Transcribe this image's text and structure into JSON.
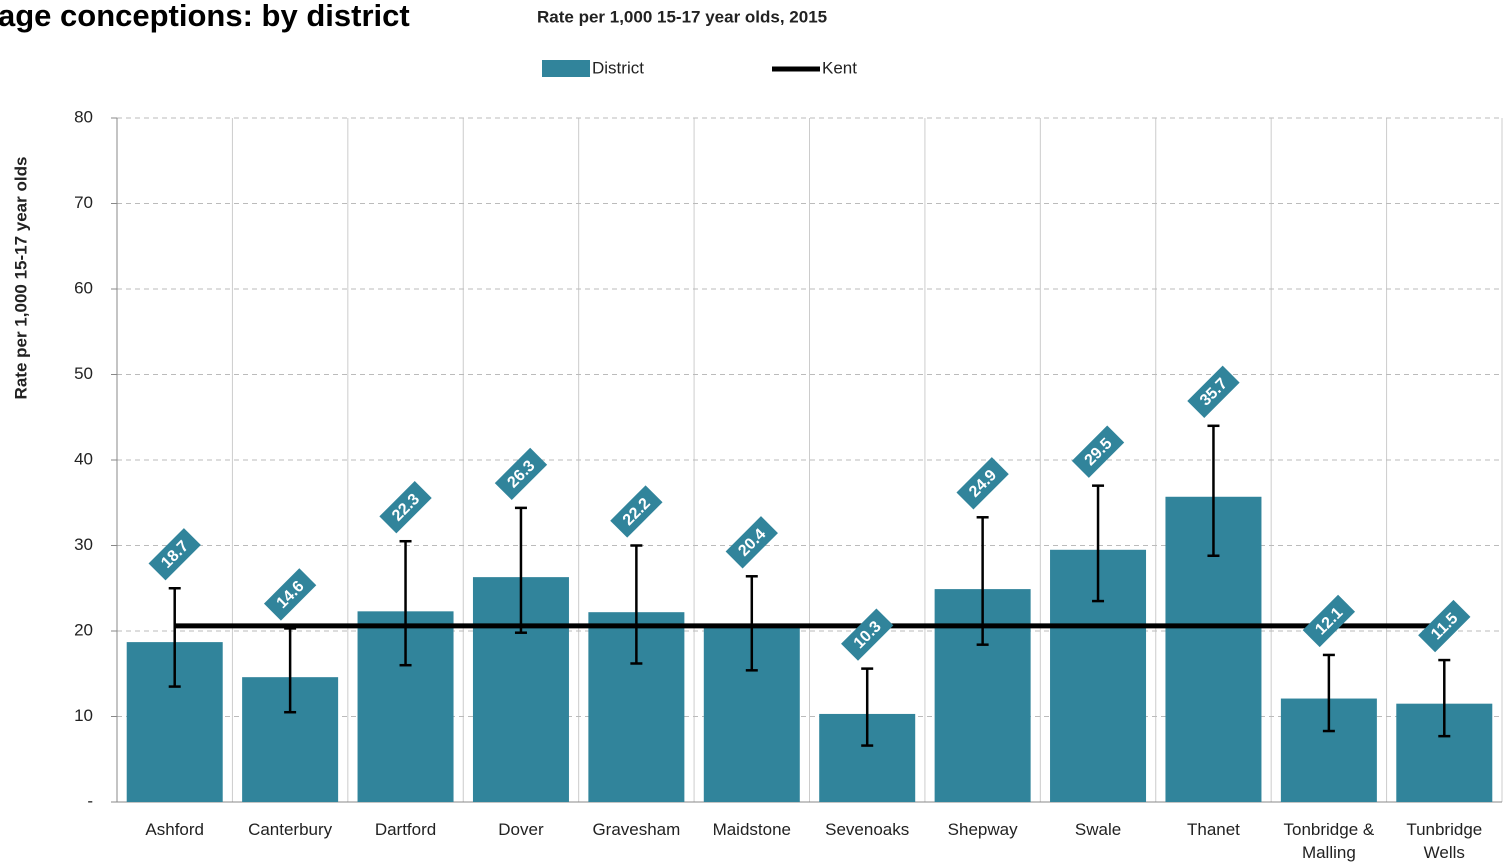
{
  "chart_data": {
    "type": "bar",
    "title": "age conceptions: by district",
    "subtitle": "Rate per 1,000 15-17 year olds, 2015",
    "y_label": "Rate per 1,000 15-17 year olds",
    "categories": [
      "Ashford",
      "Canterbury",
      "Dartford",
      "Dover",
      "Gravesham",
      "Maidstone",
      "Sevenoaks",
      "Shepway",
      "Swale",
      "Thanet",
      "Tonbridge & Malling",
      "Tunbridge Wells"
    ],
    "series": [
      {
        "name": "District",
        "color": "#31849b",
        "values": [
          18.7,
          14.6,
          22.3,
          26.3,
          22.2,
          20.4,
          10.3,
          24.9,
          29.5,
          35.7,
          12.1,
          11.5
        ],
        "lower": [
          13.5,
          10.5,
          16,
          19.8,
          16.2,
          15.4,
          6.6,
          18.4,
          23.5,
          28.8,
          8.3,
          7.7
        ],
        "upper": [
          25,
          20.3,
          30.5,
          34.4,
          30,
          26.4,
          15.6,
          33.3,
          37,
          44,
          17.2,
          16.6
        ]
      }
    ],
    "kent": {
      "name": "Kent",
      "color": "#000000",
      "value": 20.6
    },
    "ylim": [
      0,
      80
    ],
    "yticks": [
      {
        "value": 0,
        "label": "-"
      },
      10,
      20,
      30,
      40,
      50,
      60,
      70,
      80
    ],
    "grid": true
  }
}
